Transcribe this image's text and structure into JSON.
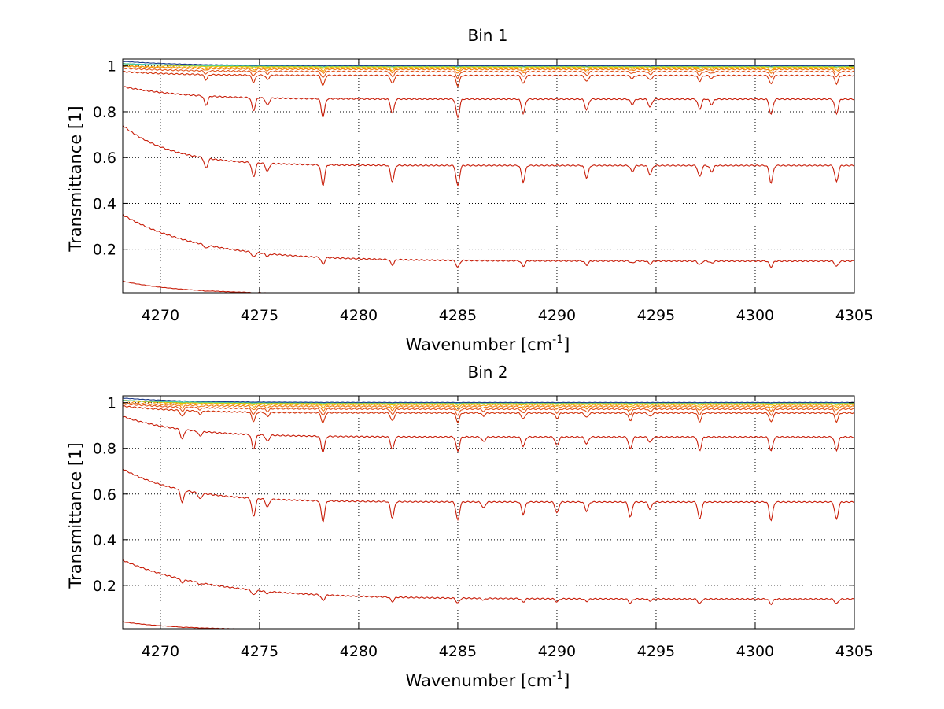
{
  "figure": {
    "background": "#ffffff"
  },
  "chart_data": [
    {
      "type": "line",
      "title": "Bin 1",
      "xlabel": "Wavenumber [cm",
      "xlabel_sup": "-1",
      "xlabel_end": "]",
      "ylabel": "Transmittance [1]",
      "xlim": [
        4268.1,
        4305
      ],
      "ylim": [
        0.01,
        1.03
      ],
      "xticks": [
        4270,
        4275,
        4280,
        4285,
        4290,
        4295,
        4300,
        4305
      ],
      "yticks": [
        0.2,
        0.4,
        0.6,
        0.8,
        1
      ],
      "ytick_labels": [
        "0.2",
        "0.4",
        "0.6",
        "0.8",
        "1"
      ],
      "grid": true,
      "absorption_lines": [
        {
          "x": 4272.3,
          "d": 0.5
        },
        {
          "x": 4274.7,
          "d": 0.7
        },
        {
          "x": 4275.4,
          "d": 0.4
        },
        {
          "x": 4278.2,
          "d": 1.0
        },
        {
          "x": 4281.7,
          "d": 0.8
        },
        {
          "x": 4285.0,
          "d": 1.0
        },
        {
          "x": 4288.3,
          "d": 0.8
        },
        {
          "x": 4291.5,
          "d": 0.6
        },
        {
          "x": 4293.8,
          "d": 0.3
        },
        {
          "x": 4294.7,
          "d": 0.45
        },
        {
          "x": 4297.2,
          "d": 0.55
        },
        {
          "x": 4297.8,
          "d": 0.3
        },
        {
          "x": 4300.8,
          "d": 0.85
        },
        {
          "x": 4304.1,
          "d": 0.8
        }
      ],
      "series": [
        {
          "color": "#c81e0a",
          "baseline": 0.005,
          "start": 0.06,
          "decay": 3.0,
          "dip": 0.004
        },
        {
          "color": "#c81e0a",
          "baseline": 0.148,
          "start": 0.35,
          "decay": 4.0,
          "dip": 0.03
        },
        {
          "color": "#c81e0a",
          "baseline": 0.565,
          "start": 0.74,
          "decay": 2.5,
          "dip": 0.09
        },
        {
          "color": "#c81e0a",
          "baseline": 0.855,
          "start": 0.91,
          "decay": 3.0,
          "dip": 0.08
        },
        {
          "color": "#d2320a",
          "baseline": 0.958,
          "start": 0.975,
          "decay": 3.0,
          "dip": 0.045
        },
        {
          "color": "#e1551e",
          "baseline": 0.975,
          "start": 0.99,
          "decay": 3.0,
          "dip": 0.028
        },
        {
          "color": "#f07d14",
          "baseline": 0.985,
          "start": 1.0,
          "decay": 3.0,
          "dip": 0.018
        },
        {
          "color": "#f5a50a",
          "baseline": 0.99,
          "start": 1.0,
          "decay": 3.0,
          "dip": 0.012
        },
        {
          "color": "#e6c800",
          "baseline": 0.995,
          "start": 1.01,
          "decay": 3.0,
          "dip": 0.007
        },
        {
          "color": "#96d23c",
          "baseline": 0.998,
          "start": 1.01,
          "decay": 3.0,
          "dip": 0.004
        },
        {
          "color": "#3cc8b4",
          "baseline": 1.0,
          "start": 1.01,
          "decay": 3.0,
          "dip": 0.002
        },
        {
          "color": "#1e3c8c",
          "baseline": 1.001,
          "start": 1.02,
          "decay": 3.0,
          "dip": 0.001
        }
      ]
    },
    {
      "type": "line",
      "title": "Bin 2",
      "xlabel": "Wavenumber [cm",
      "xlabel_sup": "-1",
      "xlabel_end": "]",
      "ylabel": "Transmittance [1]",
      "xlim": [
        4268.1,
        4305
      ],
      "ylim": [
        0.01,
        1.03
      ],
      "xticks": [
        4270,
        4275,
        4280,
        4285,
        4290,
        4295,
        4300,
        4305
      ],
      "yticks": [
        0.2,
        0.4,
        0.6,
        0.8,
        1
      ],
      "ytick_labels": [
        "0.2",
        "0.4",
        "0.6",
        "0.8",
        "1"
      ],
      "grid": true,
      "absorption_lines": [
        {
          "x": 4271.1,
          "d": 0.6
        },
        {
          "x": 4272.0,
          "d": 0.3
        },
        {
          "x": 4274.7,
          "d": 0.9
        },
        {
          "x": 4275.4,
          "d": 0.4
        },
        {
          "x": 4278.2,
          "d": 1.0
        },
        {
          "x": 4281.7,
          "d": 0.8
        },
        {
          "x": 4285.0,
          "d": 0.9
        },
        {
          "x": 4286.3,
          "d": 0.3
        },
        {
          "x": 4288.3,
          "d": 0.6
        },
        {
          "x": 4290.0,
          "d": 0.55
        },
        {
          "x": 4291.5,
          "d": 0.45
        },
        {
          "x": 4293.7,
          "d": 0.75
        },
        {
          "x": 4294.7,
          "d": 0.35
        },
        {
          "x": 4297.2,
          "d": 0.85
        },
        {
          "x": 4300.8,
          "d": 0.9
        },
        {
          "x": 4304.1,
          "d": 0.85
        }
      ],
      "series": [
        {
          "color": "#c81e0a",
          "baseline": 0.004,
          "start": 0.04,
          "decay": 3.0,
          "dip": 0.003
        },
        {
          "color": "#c81e0a",
          "baseline": 0.14,
          "start": 0.31,
          "decay": 4.5,
          "dip": 0.025
        },
        {
          "color": "#c81e0a",
          "baseline": 0.565,
          "start": 0.71,
          "decay": 3.0,
          "dip": 0.09
        },
        {
          "color": "#c81e0a",
          "baseline": 0.85,
          "start": 0.94,
          "decay": 3.0,
          "dip": 0.07
        },
        {
          "color": "#d2320a",
          "baseline": 0.955,
          "start": 0.985,
          "decay": 3.0,
          "dip": 0.045
        },
        {
          "color": "#e1551e",
          "baseline": 0.972,
          "start": 0.995,
          "decay": 3.0,
          "dip": 0.03
        },
        {
          "color": "#f07d14",
          "baseline": 0.983,
          "start": 1.0,
          "decay": 3.0,
          "dip": 0.02
        },
        {
          "color": "#f5a50a",
          "baseline": 0.99,
          "start": 1.01,
          "decay": 3.0,
          "dip": 0.012
        },
        {
          "color": "#e6c800",
          "baseline": 0.995,
          "start": 1.01,
          "decay": 3.0,
          "dip": 0.007
        },
        {
          "color": "#96d23c",
          "baseline": 0.998,
          "start": 1.01,
          "decay": 3.0,
          "dip": 0.004
        },
        {
          "color": "#3cc8b4",
          "baseline": 1.0,
          "start": 1.01,
          "decay": 3.0,
          "dip": 0.002
        },
        {
          "color": "#1e3c8c",
          "baseline": 1.001,
          "start": 1.02,
          "decay": 3.0,
          "dip": 0.001
        }
      ]
    }
  ]
}
